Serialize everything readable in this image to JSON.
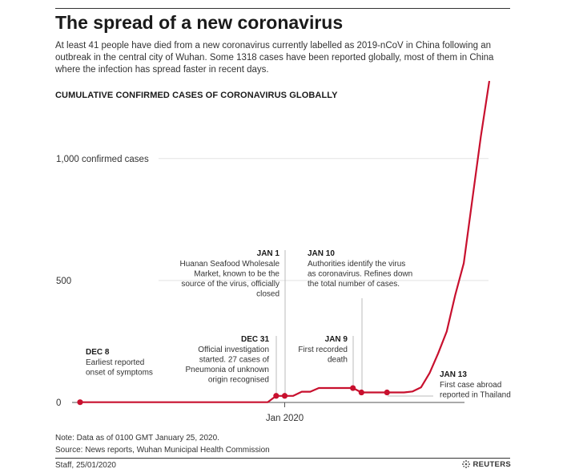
{
  "header": {
    "title": "The spread of a new coronavirus",
    "intro": "At least 41 people have died from a new coronavirus currently labelled as 2019-nCoV in China following an outbreak in the central city of Wuhan. Some 1318 cases have been reported globally, most of them in China where the infection has spread faster in recent days.",
    "subhead": "CUMULATIVE CONFIRMED CASES OF CORONAVIRUS GLOBALLY"
  },
  "chart_data": {
    "type": "line",
    "title": "CUMULATIVE CONFIRMED CASES OF CORONAVIRUS GLOBALLY",
    "xlabel": "",
    "ylabel": "",
    "ylim": [
      0,
      1318
    ],
    "xlim": [
      "2019-12-08",
      "2020-01-25"
    ],
    "y_ticks": [
      {
        "value": 0,
        "label": "0"
      },
      {
        "value": 500,
        "label": "500"
      },
      {
        "value": 1000,
        "label": "1,000 confirmed cases"
      }
    ],
    "x_ticks": [
      {
        "date": "2020-01-01",
        "label": "Jan 2020"
      }
    ],
    "grid": "horizontal",
    "line_color": "#c8102e",
    "series": [
      {
        "x": [
          "2019-12-08",
          "2019-12-30",
          "2019-12-31",
          "2020-01-01",
          "2020-01-02",
          "2020-01-03",
          "2020-01-04",
          "2020-01-05",
          "2020-01-06",
          "2020-01-07",
          "2020-01-08",
          "2020-01-09",
          "2020-01-10",
          "2020-01-11",
          "2020-01-12",
          "2020-01-13",
          "2020-01-14",
          "2020-01-15",
          "2020-01-16",
          "2020-01-17",
          "2020-01-18",
          "2020-01-19",
          "2020-01-20",
          "2020-01-21",
          "2020-01-22",
          "2020-01-23",
          "2020-01-24",
          "2020-01-25"
        ],
        "values": [
          1,
          1,
          27,
          27,
          27,
          44,
          44,
          59,
          59,
          59,
          59,
          59,
          41,
          41,
          41,
          41,
          41,
          41,
          45,
          62,
          121,
          201,
          291,
          440,
          571,
          830,
          1090,
          1318
        ]
      }
    ],
    "markers": [
      {
        "date": "2019-12-08",
        "value": 1
      },
      {
        "date": "2019-12-31",
        "value": 27
      },
      {
        "date": "2020-01-01",
        "value": 27
      },
      {
        "date": "2020-01-09",
        "value": 59
      },
      {
        "date": "2020-01-10",
        "value": 41
      },
      {
        "date": "2020-01-13",
        "value": 41
      }
    ],
    "annotations": [
      {
        "date": "2019-12-08",
        "heading": "DEC 8",
        "lines": [
          "Earliest reported",
          "onset of symptoms"
        ],
        "align": "left"
      },
      {
        "date": "2019-12-31",
        "heading": "DEC 31",
        "lines": [
          "Official investigation",
          "started. 27 cases of",
          "Pneumonia of unknown",
          "origin recognised"
        ],
        "align": "right"
      },
      {
        "date": "2020-01-01",
        "heading": "JAN 1",
        "lines": [
          "Huanan Seafood Wholesale",
          "Market, known to be the",
          "source of the virus, officially",
          "closed"
        ],
        "align": "right"
      },
      {
        "date": "2020-01-09",
        "heading": "JAN 9",
        "lines": [
          "First recorded",
          "death"
        ],
        "align": "right"
      },
      {
        "date": "2020-01-10",
        "heading": "JAN 10",
        "lines": [
          "Authorities identify the virus",
          "as coronavirus. Refines down",
          "the total number of cases."
        ],
        "align": "left"
      },
      {
        "date": "2020-01-13",
        "heading": "JAN 13",
        "lines": [
          "First case abroad",
          "reported in Thailand"
        ],
        "align": "left"
      }
    ]
  },
  "footer": {
    "note": "Note: Data as of 0100 GMT January 25, 2020.",
    "source": "Source: News reports, Wuhan Municipal Health Commission",
    "credit": "Staff,  25/01/2020",
    "brand": "REUTERS"
  }
}
